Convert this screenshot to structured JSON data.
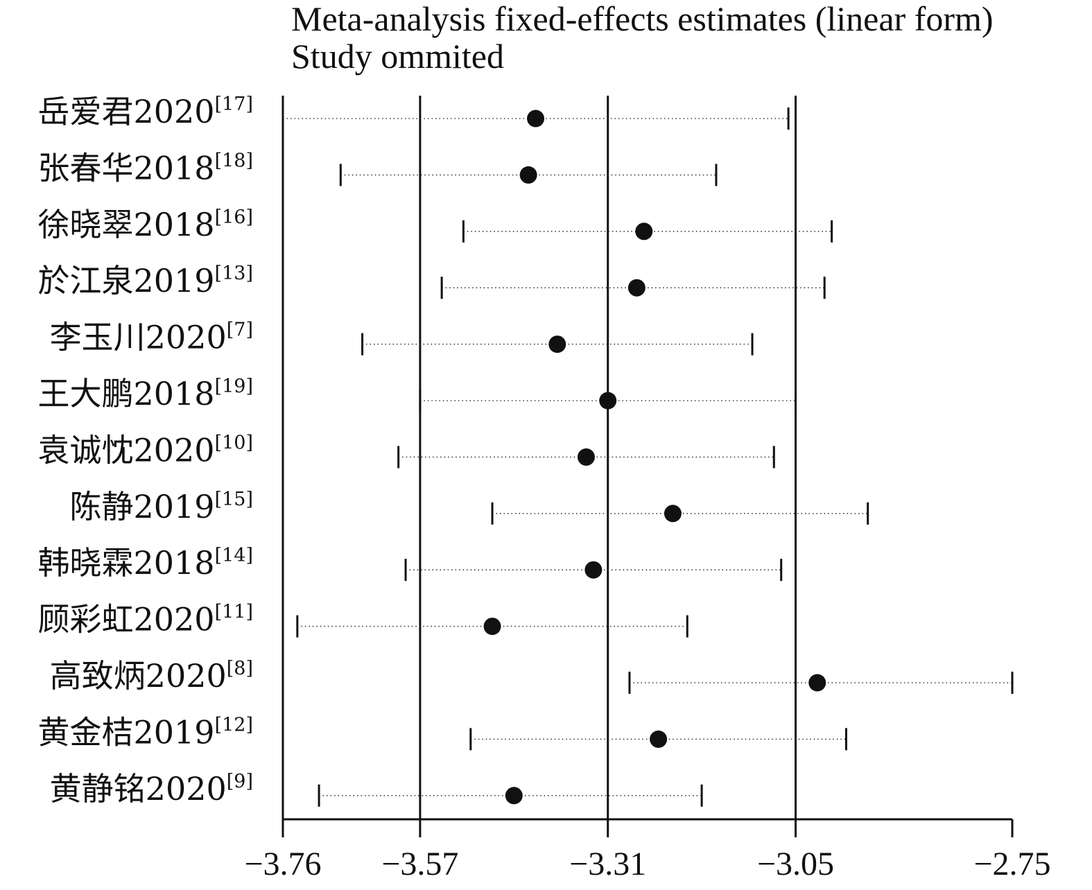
{
  "chart_data": {
    "type": "forest-plot",
    "title": "Meta-analysis fixed-effects estimates (linear form)",
    "subtitle": "Study ommited",
    "xlabel": "",
    "ylabel": "",
    "xlim": [
      -3.76,
      -2.75
    ],
    "x_ticks": [
      -3.76,
      -3.57,
      -3.31,
      -3.05,
      -2.75
    ],
    "x_tick_labels": [
      "−3.76",
      "−3.57",
      "−3.31",
      "−3.05",
      "−2.75"
    ],
    "reference_lines": [
      -3.76,
      -3.57,
      -3.31,
      -3.05
    ],
    "grid": false,
    "legend": "none",
    "studies": [
      {
        "name": "岳爱君2020",
        "ref": "[17]",
        "estimate": -3.41,
        "lower": -3.76,
        "upper": -3.06
      },
      {
        "name": "张春华2018",
        "ref": "[18]",
        "estimate": -3.42,
        "lower": -3.68,
        "upper": -3.16
      },
      {
        "name": "徐晓翠2018",
        "ref": "[16]",
        "estimate": -3.26,
        "lower": -3.51,
        "upper": -3.0
      },
      {
        "name": "於江泉2019",
        "ref": "[13]",
        "estimate": -3.27,
        "lower": -3.54,
        "upper": -3.01
      },
      {
        "name": "李玉川2020",
        "ref": "[7]",
        "estimate": -3.38,
        "lower": -3.65,
        "upper": -3.11
      },
      {
        "name": "王大鹏2018",
        "ref": "[19]",
        "estimate": -3.31,
        "lower": -3.57,
        "upper": -3.05
      },
      {
        "name": "袁诚忱2020",
        "ref": "[10]",
        "estimate": -3.34,
        "lower": -3.6,
        "upper": -3.08
      },
      {
        "name": "陈静2019",
        "ref": "[15]",
        "estimate": -3.22,
        "lower": -3.47,
        "upper": -2.95
      },
      {
        "name": "韩晓霖2018",
        "ref": "[14]",
        "estimate": -3.33,
        "lower": -3.59,
        "upper": -3.07
      },
      {
        "name": "顾彩虹2020",
        "ref": "[11]",
        "estimate": -3.47,
        "lower": -3.74,
        "upper": -3.2
      },
      {
        "name": "高致炳2020",
        "ref": "[8]",
        "estimate": -3.02,
        "lower": -3.28,
        "upper": -2.75
      },
      {
        "name": "黄金桔2019",
        "ref": "[12]",
        "estimate": -3.24,
        "lower": -3.5,
        "upper": -2.98
      },
      {
        "name": "黄静铭2020",
        "ref": "[9]",
        "estimate": -3.44,
        "lower": -3.71,
        "upper": -3.18
      }
    ],
    "colors": {
      "marker": "#111111",
      "lines": "#111111",
      "ci": "#333333"
    }
  }
}
